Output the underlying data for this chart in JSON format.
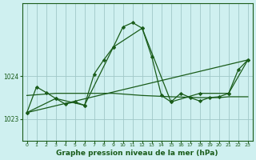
{
  "background_color": "#cff0f0",
  "line_color": "#1a5c1a",
  "grid_color": "#a0c8c8",
  "xlabel": "Graphe pression niveau de la mer (hPa)",
  "xlabel_fontsize": 6.5,
  "yticks": [
    1023,
    1024
  ],
  "ylim": [
    1022.5,
    1025.7
  ],
  "xlim": [
    -0.5,
    23.5
  ],
  "xticks": [
    0,
    1,
    2,
    3,
    4,
    5,
    6,
    7,
    8,
    9,
    10,
    11,
    12,
    13,
    14,
    15,
    16,
    17,
    18,
    19,
    20,
    21,
    22,
    23
  ],
  "series": [
    {
      "x": [
        0,
        1,
        2,
        3,
        4,
        5,
        6,
        7,
        8,
        9,
        10,
        11,
        12,
        13,
        14,
        15,
        16,
        17,
        18,
        19,
        20,
        21,
        22,
        23
      ],
      "y": [
        1023.15,
        1023.75,
        1023.62,
        1023.48,
        1023.35,
        1023.4,
        1023.32,
        1024.05,
        1024.38,
        1024.68,
        1025.15,
        1025.25,
        1025.12,
        1024.45,
        1023.55,
        1023.4,
        1023.6,
        1023.5,
        1023.42,
        1023.5,
        1023.52,
        1023.6,
        1024.15,
        1024.38
      ]
    },
    {
      "x": [
        0,
        3,
        6,
        9,
        12,
        15,
        18,
        21,
        23
      ],
      "y": [
        1023.15,
        1023.48,
        1023.32,
        1024.68,
        1025.12,
        1023.4,
        1023.6,
        1023.6,
        1024.38
      ]
    },
    {
      "x": [
        0,
        3,
        6,
        9,
        12,
        15,
        18,
        19,
        20,
        21,
        22,
        23
      ],
      "y": [
        1023.55,
        1023.6,
        1023.6,
        1023.6,
        1023.55,
        1023.52,
        1023.5,
        1023.5,
        1023.5,
        1023.52,
        1023.52,
        1023.52
      ]
    },
    {
      "x": [
        0,
        23
      ],
      "y": [
        1023.15,
        1024.38
      ]
    }
  ]
}
